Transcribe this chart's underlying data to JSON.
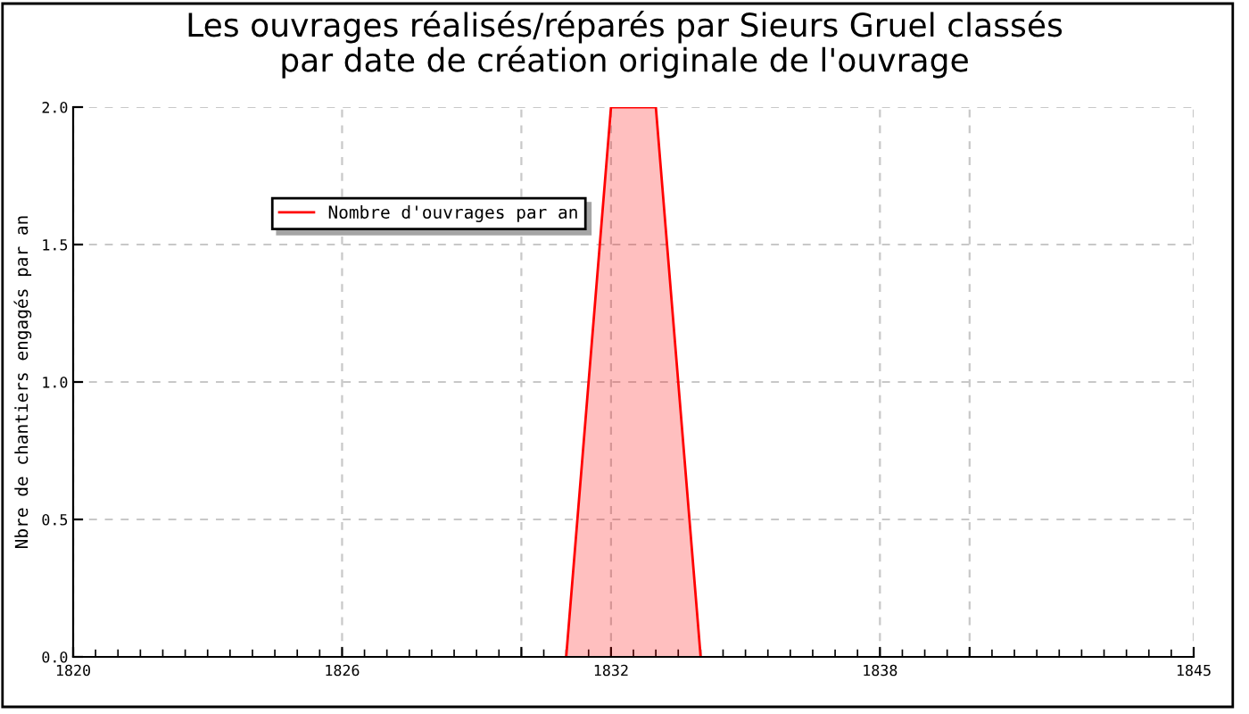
{
  "chart_data": {
    "type": "area",
    "title": "Les ouvrages réalisés/réparés par Sieurs Gruel classés\npar date de création originale de l'ouvrage",
    "ylabel": "Nbre de chantiers engagés par an",
    "x": [
      1831,
      1832,
      1833,
      1834
    ],
    "series": [
      {
        "name": "Nombre d'ouvrages par an",
        "color": "#ff0000",
        "values": [
          0,
          2,
          2,
          0
        ]
      }
    ],
    "xlim": [
      1820,
      1845
    ],
    "xticks": [
      {
        "value": 1820,
        "label": "1820"
      },
      1826,
      {
        "value": 1830,
        "label": null
      },
      1832,
      1838,
      {
        "value": 1840,
        "label": null
      },
      {
        "value": 1845,
        "label": "1845"
      }
    ],
    "ylim": [
      0,
      2
    ],
    "yticks": [
      {
        "value": 0,
        "label": "0.0"
      },
      {
        "value": 0.5,
        "label": "0.5"
      },
      {
        "value": 1,
        "label": "1.0"
      },
      {
        "value": 1.5,
        "label": "1.5"
      },
      {
        "value": 2,
        "label": "2.0"
      }
    ],
    "grid": true,
    "legend": "top left",
    "marker": "none",
    "line_style": "solid"
  }
}
